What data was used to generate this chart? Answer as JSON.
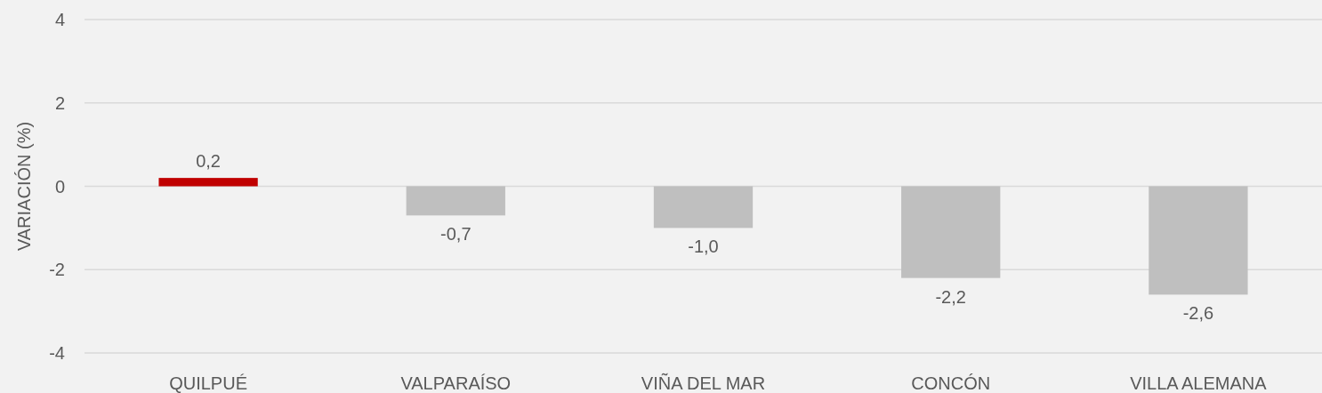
{
  "chart_data": {
    "type": "bar",
    "ylabel": "VARIACIÓN (%)",
    "categories": [
      "QUILPUÉ",
      "VALPARAÍSO",
      "VIÑA DEL MAR",
      "CONCÓN",
      "VILLA ALEMANA"
    ],
    "values": [
      0.2,
      -0.7,
      -1.0,
      -2.2,
      -2.6
    ],
    "colors": [
      "#c00000",
      "#bfbfbf",
      "#bfbfbf",
      "#bfbfbf",
      "#bfbfbf"
    ],
    "value_labels": [
      "0,2",
      "-0,7",
      "-1,0",
      "-2,2",
      "-2,6"
    ],
    "ylim": [
      -4,
      4
    ],
    "yticks": [
      -4,
      -2,
      0,
      2,
      4
    ],
    "grid": "y"
  }
}
